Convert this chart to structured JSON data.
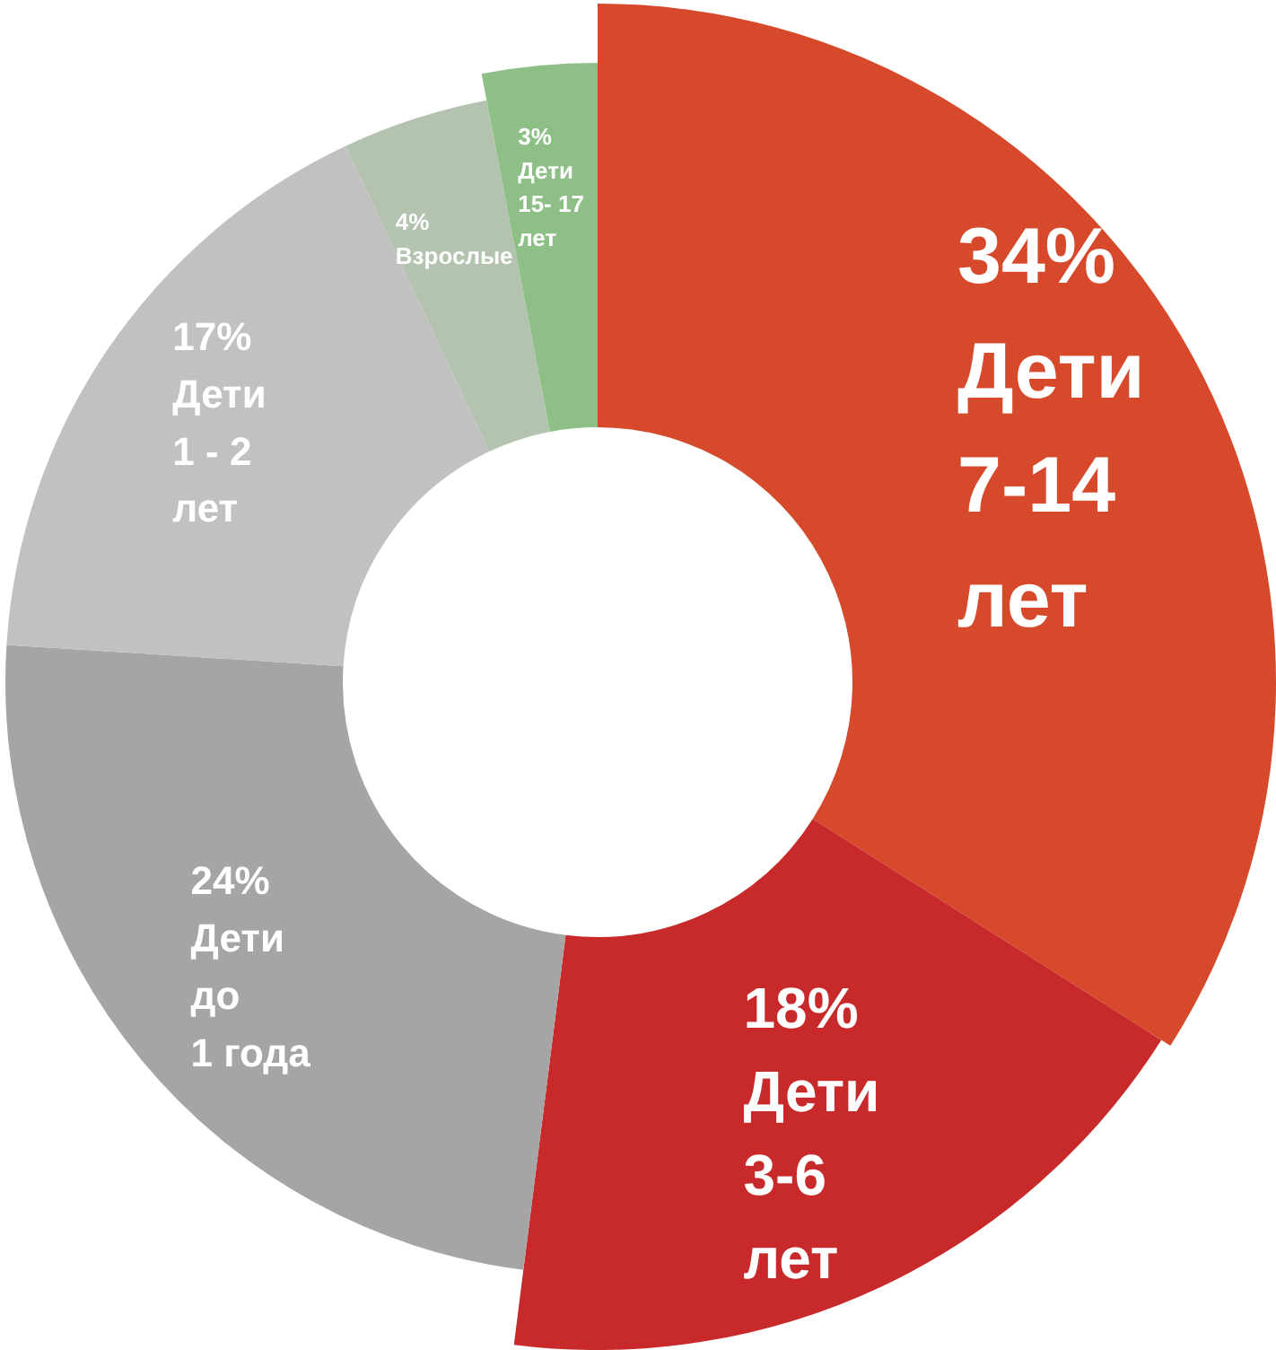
{
  "chart_data": {
    "type": "donut",
    "categories": [
      "Дети\n7-14\nлет",
      "Дети\n3-6\nлет",
      "Дети\nдо\n1 года",
      "Дети\n1 - 2\nлет",
      "Взрослые",
      "Дети\n15- 17\nлет"
    ],
    "values": [
      34,
      18,
      24,
      17,
      4,
      3
    ],
    "colors": [
      "#d6492b",
      "#c8292a",
      "#a5a5a5",
      "#c1c1c1",
      "#b4c3b0",
      "#8dbf87"
    ],
    "value_labels": [
      "34%",
      "18%",
      "24%",
      "17%",
      "4%",
      "3%"
    ],
    "legend": false
  }
}
